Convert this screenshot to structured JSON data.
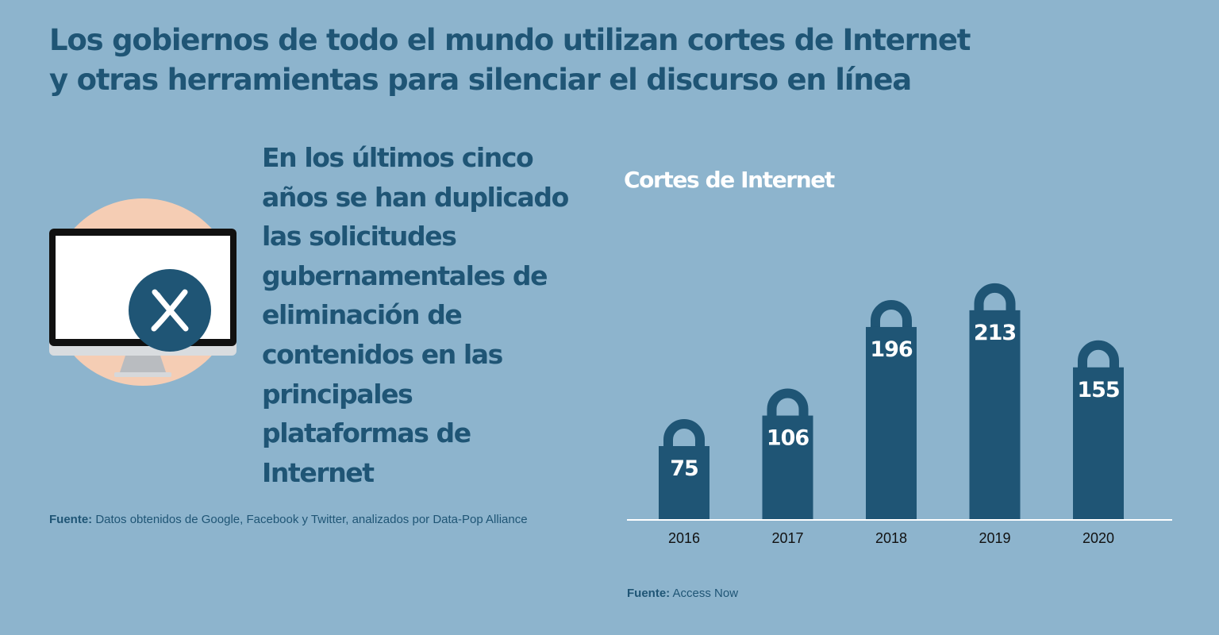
{
  "headline": {
    "line1": "Los gobiernos de todo el mundo utilizan cortes de Internet",
    "line2": "y otras herramientas para silenciar el discurso en línea"
  },
  "stat": {
    "lines": [
      "En los últimos cinco",
      "años se han duplicado",
      "las solicitudes",
      "gubernamentales de",
      "eliminación de",
      "contenidos en las",
      "principales",
      "plataformas de",
      "Internet"
    ]
  },
  "sources": {
    "left": {
      "label": "Fuente:",
      "text": " Datos obtenidos de Google, Facebook y Twitter, analizados por Data-Pop Alliance"
    },
    "right": {
      "label": "Fuente:",
      "text": " Access Now"
    }
  },
  "icons": {
    "computer": "computer-monitor-icon",
    "close": "close-x-icon"
  },
  "colors": {
    "background": "#8db4cd",
    "bar": "#1f5575",
    "title_text": "#1f5575",
    "chart_title": "#ffffff",
    "peach_circle": "#f5cdb4"
  },
  "chart_data": {
    "type": "bar",
    "title": "Cortes de Internet",
    "categories": [
      "2016",
      "2017",
      "2018",
      "2019",
      "2020"
    ],
    "values": [
      75,
      106,
      196,
      213,
      155
    ],
    "xlabel": "",
    "ylabel": "",
    "ylim": [
      0,
      230
    ],
    "grid": false,
    "bar_style": "padlock"
  }
}
